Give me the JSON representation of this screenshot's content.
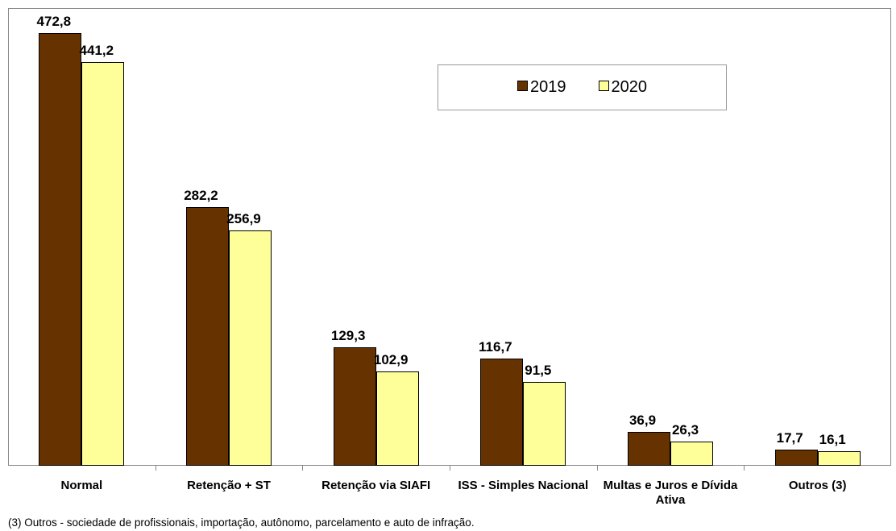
{
  "chart_data": {
    "type": "bar",
    "categories": [
      "Normal",
      "Retenção  + ST",
      "Retenção via SIAFI",
      "ISS - Simples Nacional",
      "Multas e Juros e Dívida Ativa",
      "Outros (3)"
    ],
    "series": [
      {
        "name": "2019",
        "color": "#663300",
        "values": [
          472.8,
          282.2,
          129.3,
          116.7,
          36.9,
          17.7
        ],
        "value_labels": [
          "472,8",
          "282,2",
          "129,3",
          "116,7",
          "36,9",
          "17,7"
        ]
      },
      {
        "name": "2020",
        "color": "#ffff99",
        "values": [
          441.2,
          256.9,
          102.9,
          91.5,
          26.3,
          16.1
        ],
        "value_labels": [
          "441,2",
          "256,9",
          "102,9",
          "91,5",
          "26,3",
          "16,1"
        ]
      }
    ],
    "ylim": [
      0,
      500
    ],
    "note": "(3) Outros - sociedade de profissionais, importação, autônomo, parcelamento e auto de infração."
  }
}
